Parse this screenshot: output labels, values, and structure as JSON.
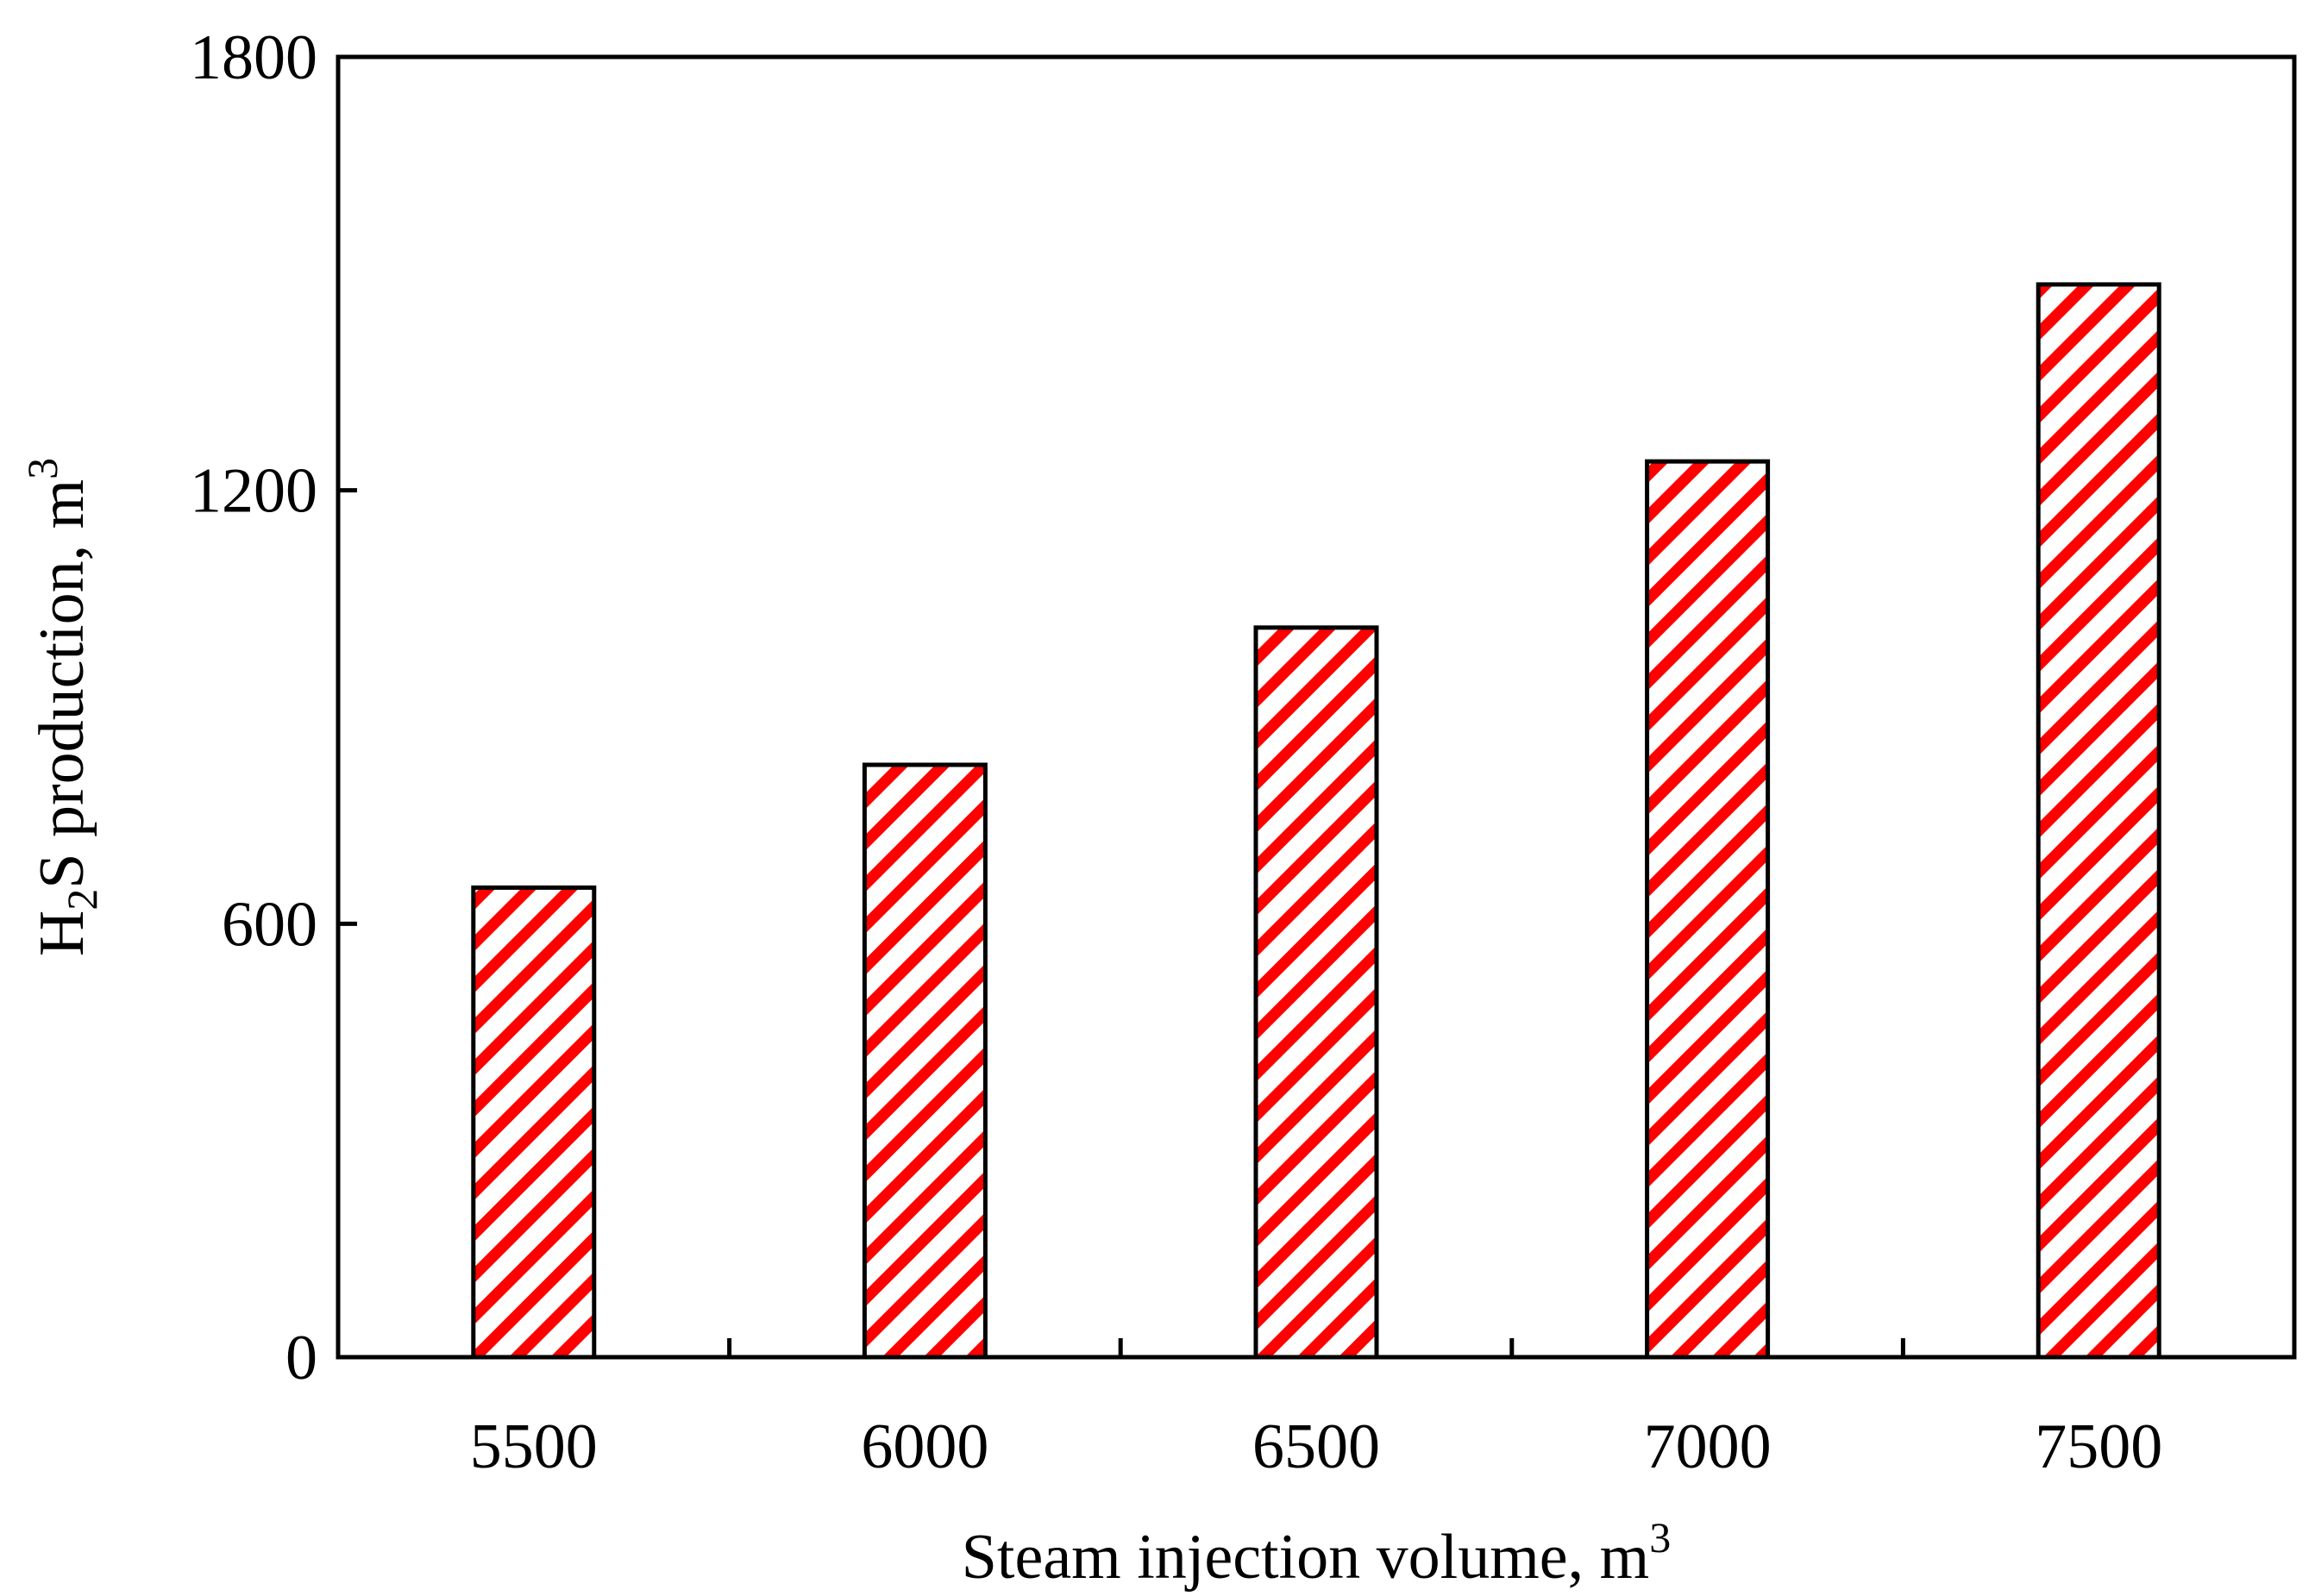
{
  "chart_data": {
    "type": "bar",
    "categories": [
      "5500",
      "6000",
      "6500",
      "7000",
      "7500"
    ],
    "values": [
      650,
      820,
      1010,
      1240,
      1485
    ],
    "title": "",
    "xlabel": {
      "main": "Steam injection volume, m",
      "sup": "3"
    },
    "ylabel": {
      "pre": "H",
      "sub": "2",
      "mid": "S production, m",
      "sup": "3"
    },
    "ylim": [
      0,
      1800
    ],
    "yticks": [
      "0",
      "600",
      "1200",
      "1800"
    ],
    "grid": false,
    "bar_fill": "hatched",
    "colors": {
      "hatch": "#ff0000",
      "bar_outline": "#000000",
      "axis": "#000000",
      "background": "#ffffff"
    }
  }
}
